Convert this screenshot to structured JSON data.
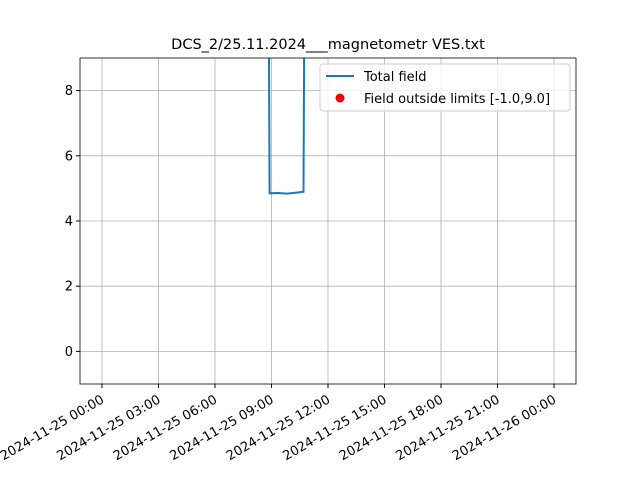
{
  "chart_data": {
    "type": "line",
    "title": "DCS_2/25.11.2024___magnetometr VES.txt",
    "x": [
      "2024-11-25 08:52",
      "2024-11-25 08:54",
      "2024-11-25 09:20",
      "2024-11-25 09:50",
      "2024-11-25 10:20",
      "2024-11-25 10:42",
      "2024-11-25 10:44"
    ],
    "series": [
      {
        "name": "Total field",
        "color": "#1f77b4",
        "type": "line",
        "values": [
          9,
          4.85,
          4.86,
          4.84,
          4.87,
          4.9,
          9
        ]
      },
      {
        "name": "Field outside limits [-1.0,9.0]",
        "color": "#ff0000",
        "type": "scatter",
        "x": [],
        "values": []
      }
    ],
    "xlim": [
      "2024-11-24 22:50",
      "2024-11-26 01:10"
    ],
    "xticks": [
      "2024-11-25 00:00",
      "2024-11-25 03:00",
      "2024-11-25 06:00",
      "2024-11-25 09:00",
      "2024-11-25 12:00",
      "2024-11-25 15:00",
      "2024-11-25 18:00",
      "2024-11-25 21:00",
      "2024-11-26 00:00"
    ],
    "ylim": [
      -1,
      9
    ],
    "yticks": [
      0,
      2,
      4,
      6,
      8
    ],
    "grid": true,
    "legend": "upper right"
  }
}
